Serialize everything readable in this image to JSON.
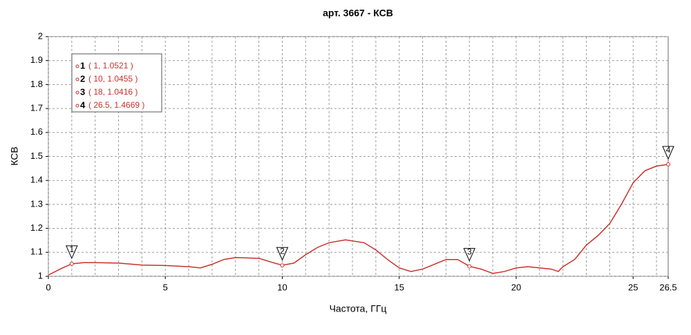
{
  "chart_data": {
    "type": "line",
    "title": "арт. 3667 - КСВ",
    "x_label": "Частота, ГГц",
    "y_label": "КСВ",
    "x": [
      0,
      0.5,
      1,
      1.5,
      2,
      3,
      4,
      5,
      6,
      6.5,
      7,
      7.5,
      8,
      9,
      9.5,
      10,
      10.5,
      11,
      11.5,
      12,
      12.7,
      13.5,
      14,
      14.5,
      15,
      15.5,
      16,
      16.5,
      17,
      17.5,
      18,
      18.5,
      19,
      19.5,
      20,
      20.5,
      21,
      21.5,
      21.8,
      22,
      22.5,
      23,
      23.5,
      24,
      24.5,
      25,
      25.5,
      26,
      26.5
    ],
    "series": [
      {
        "name": "КСВ",
        "color": "#c8302a",
        "values": [
          1.005,
          1.03,
          1.052,
          1.057,
          1.057,
          1.055,
          1.047,
          1.045,
          1.04,
          1.035,
          1.05,
          1.07,
          1.078,
          1.075,
          1.06,
          1.046,
          1.055,
          1.09,
          1.12,
          1.14,
          1.152,
          1.14,
          1.11,
          1.07,
          1.035,
          1.02,
          1.03,
          1.05,
          1.07,
          1.07,
          1.042,
          1.03,
          1.012,
          1.02,
          1.035,
          1.04,
          1.035,
          1.03,
          1.02,
          1.04,
          1.07,
          1.13,
          1.17,
          1.22,
          1.3,
          1.39,
          1.44,
          1.46,
          1.4669
        ]
      }
    ],
    "xlim": [
      0,
      26.5
    ],
    "ylim": [
      1,
      2
    ],
    "xticks": [
      0,
      5,
      10,
      15,
      20,
      25,
      26.5
    ],
    "xgrid": [
      0,
      1,
      2,
      3,
      4,
      5,
      6,
      7,
      8,
      9,
      10,
      11,
      12,
      13,
      14,
      15,
      16,
      17,
      18,
      19,
      20,
      21,
      22,
      23,
      24,
      25,
      26
    ],
    "yticks": [
      1,
      1.1,
      1.2,
      1.3,
      1.4,
      1.5,
      1.6,
      1.7,
      1.8,
      1.9,
      2
    ],
    "grid": true,
    "markers": [
      {
        "label": "1",
        "text": "( 1, 1.0521 )",
        "x": 1,
        "y": 1.0521
      },
      {
        "label": "2",
        "text": "( 10, 1.0455 )",
        "x": 10,
        "y": 1.0455
      },
      {
        "label": "3",
        "text": "( 18, 1.0416 )",
        "x": 18,
        "y": 1.0416
      },
      {
        "label": "4",
        "text": "( 26.5, 1.4669 )",
        "x": 26.5,
        "y": 1.4669
      }
    ]
  }
}
